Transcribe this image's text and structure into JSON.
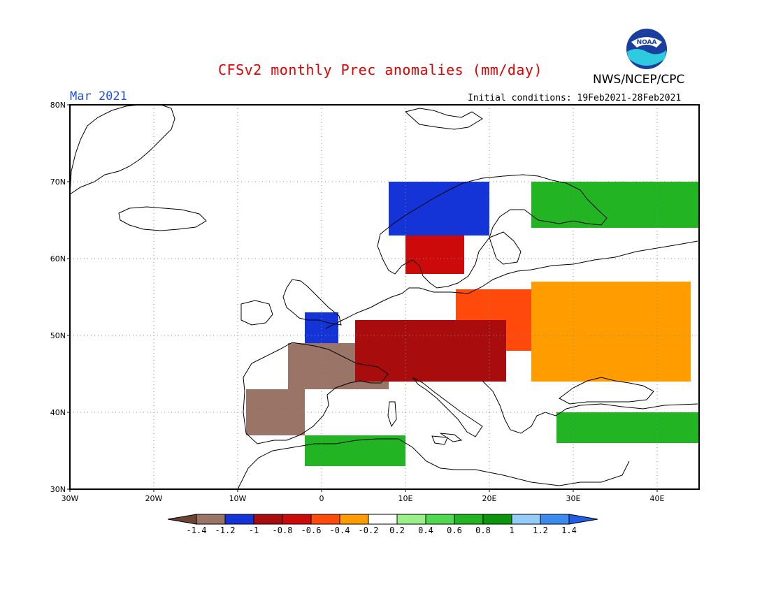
{
  "header": {
    "title": "CFSv2 monthly Prec anomalies (mm/day)",
    "month": "Mar 2021",
    "initial_conditions": "Initial conditions: 19Feb2021-28Feb2021",
    "agency": "NWS/NCEP/CPC",
    "logo_text": "NOAA"
  },
  "axes": {
    "lat_labels": [
      "80N",
      "70N",
      "60N",
      "50N",
      "40N",
      "30N"
    ],
    "lon_labels": [
      "30W",
      "20W",
      "10W",
      "0",
      "10E",
      "20E",
      "30E",
      "40E"
    ]
  },
  "colorbar": {
    "tick_labels": [
      "-1.4",
      "-1.2",
      "-1",
      "-0.8",
      "-0.6",
      "-0.4",
      "-0.2",
      "0.2",
      "0.4",
      "0.6",
      "0.8",
      "1",
      "1.2",
      "1.4"
    ],
    "colors": [
      "#6b4436",
      "#9b7468",
      "#1434d8",
      "#a80c0c",
      "#cc0a0a",
      "#ff4a0c",
      "#ff9c00",
      "#ffffff",
      "#9cf08a",
      "#50d850",
      "#22b422",
      "#0c960c",
      "#96ccf8",
      "#3c8cf0",
      "#1f5fe8"
    ]
  },
  "chart_data": {
    "type": "heatmap",
    "variable": "Prec anomalies (mm/day)",
    "xlim": [
      -30,
      45
    ],
    "ylim": [
      30,
      80
    ],
    "regions": [
      {
        "anomaly": -0.6,
        "lat": [
          48,
          56
        ],
        "lon": [
          16,
          40
        ]
      },
      {
        "anomaly": -0.4,
        "lat": [
          44,
          57
        ],
        "lon": [
          25,
          44
        ]
      },
      {
        "anomaly": -1.4,
        "lat": [
          43,
          49
        ],
        "lon": [
          -4,
          8
        ]
      },
      {
        "anomaly": -1.4,
        "lat": [
          37,
          43
        ],
        "lon": [
          -9,
          -2
        ]
      },
      {
        "anomaly": -0.8,
        "lat": [
          58,
          63
        ],
        "lon": [
          10,
          17
        ]
      },
      {
        "anomaly": -1.0,
        "lat": [
          44,
          52
        ],
        "lon": [
          4,
          22
        ]
      },
      {
        "anomaly": -1.2,
        "lat": [
          49,
          53
        ],
        "lon": [
          -2,
          2
        ]
      },
      {
        "anomaly": 0.6,
        "lat": [
          64,
          70
        ],
        "lon": [
          25,
          45
        ]
      },
      {
        "anomaly": 0.6,
        "lat": [
          33,
          37
        ],
        "lon": [
          -2,
          10
        ]
      },
      {
        "anomaly": 0.6,
        "lat": [
          36,
          40
        ],
        "lon": [
          28,
          45
        ]
      },
      {
        "anomaly": -1.2,
        "lat": [
          63,
          70
        ],
        "lon": [
          8,
          20
        ]
      }
    ]
  }
}
